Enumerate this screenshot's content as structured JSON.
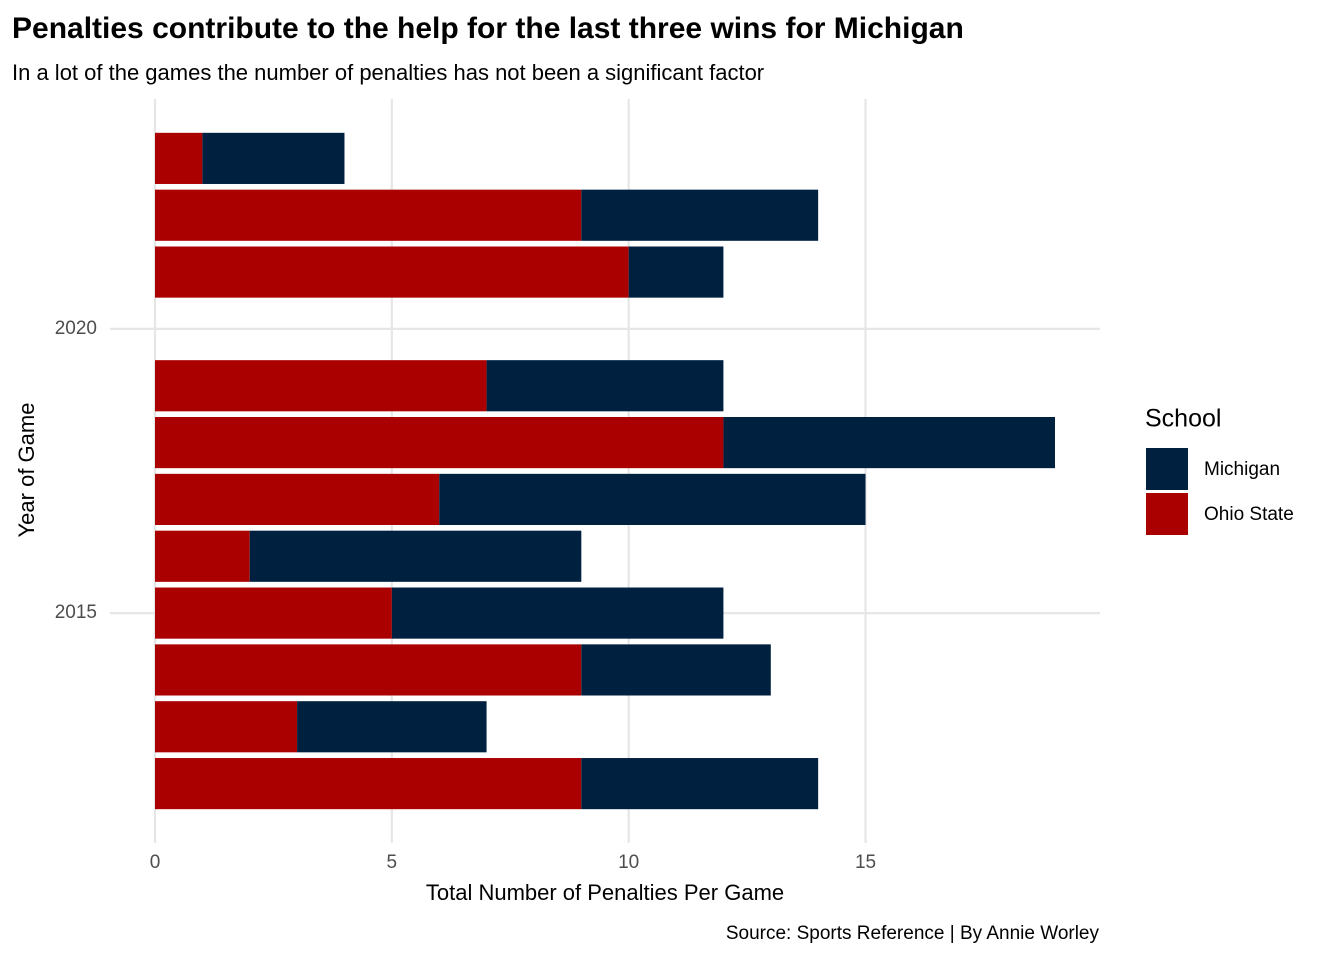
{
  "chart_data": {
    "type": "stacked-bar-horizontal",
    "title": "Penalties contribute to the help for the last three wins for Michigan",
    "subtitle": "In a lot of the games the number of penalties has not been a significant factor",
    "caption": "Source: Sports Reference | By Annie Worley",
    "x_label": "Total Number of Penalties Per Game",
    "y_label": "Year of Game",
    "legend_title": "School",
    "legend_position": "right",
    "grid": true,
    "y": [
      2012,
      2013,
      2014,
      2015,
      2016,
      2017,
      2018,
      2019,
      2021,
      2022,
      2023
    ],
    "series": [
      {
        "name": "Michigan",
        "color": "#00203f",
        "values": [
          5,
          4,
          4,
          7,
          7,
          9,
          7,
          5,
          2,
          5,
          3
        ]
      },
      {
        "name": "Ohio State",
        "color": "#aa0000",
        "values": [
          9,
          3,
          9,
          5,
          2,
          6,
          12,
          7,
          10,
          9,
          1
        ]
      }
    ],
    "xlim": [
      -0.95,
      19.95
    ],
    "xticks": [
      0,
      5,
      10,
      15
    ],
    "ylim": [
      2010.955,
      2024.045
    ],
    "yticks": [
      2015,
      2020
    ]
  }
}
